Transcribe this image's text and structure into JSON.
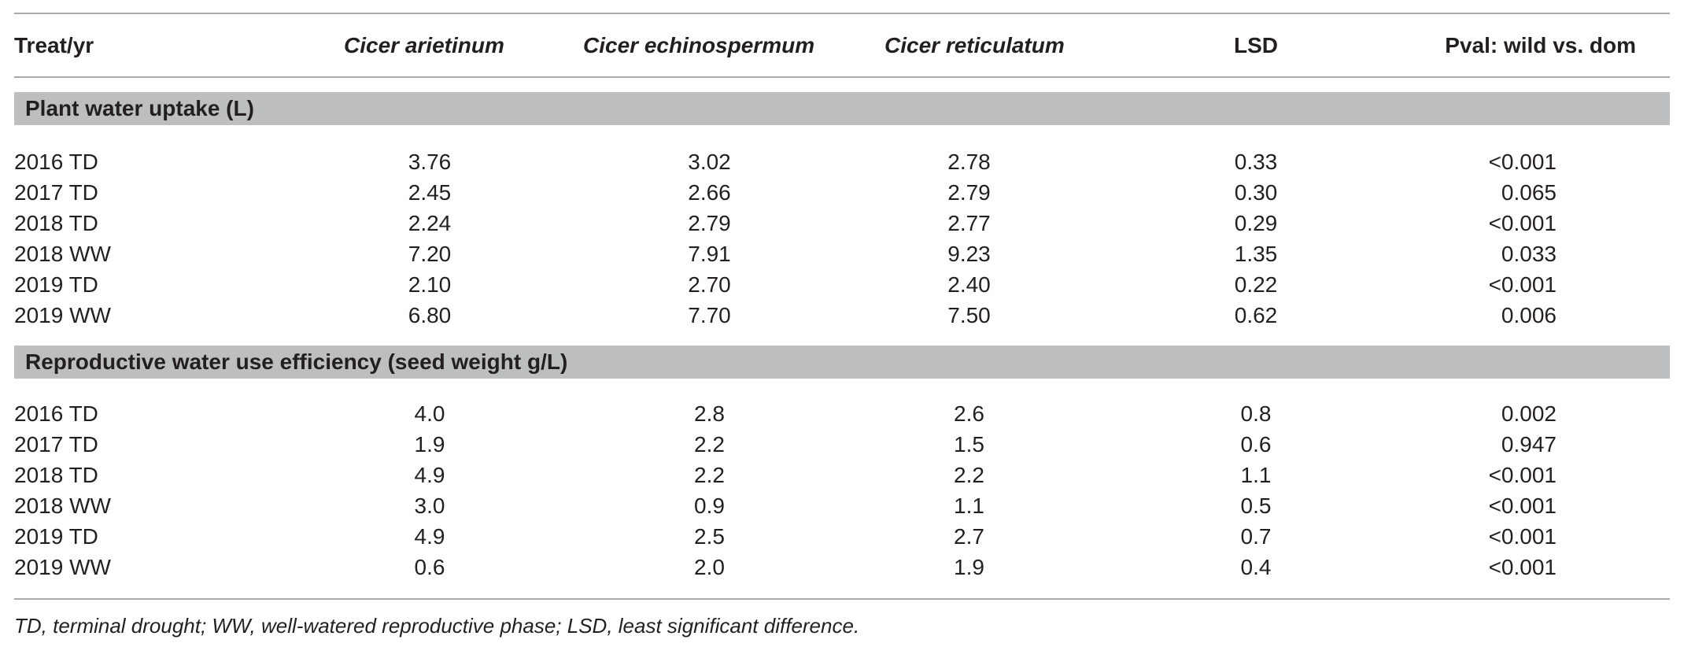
{
  "table": {
    "columns": [
      "Treat/yr",
      "Cicer arietinum",
      "Cicer echinospermum",
      "Cicer reticulatum",
      "LSD",
      "Pval: wild vs. dom"
    ],
    "sections": [
      {
        "title": "Plant water uptake (L)",
        "rows": [
          [
            "2016 TD",
            "3.76",
            "3.02",
            "2.78",
            "0.33",
            "<0.001"
          ],
          [
            "2017 TD",
            "2.45",
            "2.66",
            "2.79",
            "0.30",
            "0.065"
          ],
          [
            "2018 TD",
            "2.24",
            "2.79",
            "2.77",
            "0.29",
            "<0.001"
          ],
          [
            "2018 WW",
            "7.20",
            "7.91",
            "9.23",
            "1.35",
            "0.033"
          ],
          [
            "2019 TD",
            "2.10",
            "2.70",
            "2.40",
            "0.22",
            "<0.001"
          ],
          [
            "2019 WW",
            "6.80",
            "7.70",
            "7.50",
            "0.62",
            "0.006"
          ]
        ]
      },
      {
        "title": "Reproductive water use efficiency (seed weight g/L)",
        "rows": [
          [
            "2016 TD",
            "4.0",
            "2.8",
            "2.6",
            "0.8",
            "0.002"
          ],
          [
            "2017 TD",
            "1.9",
            "2.2",
            "1.5",
            "0.6",
            "0.947"
          ],
          [
            "2018 TD",
            "4.9",
            "2.2",
            "2.2",
            "1.1",
            "<0.001"
          ],
          [
            "2018 WW",
            "3.0",
            "0.9",
            "1.1",
            "0.5",
            "<0.001"
          ],
          [
            "2019 TD",
            "4.9",
            "2.5",
            "2.7",
            "0.7",
            "<0.001"
          ],
          [
            "2019 WW",
            "0.6",
            "2.0",
            "1.9",
            "0.4",
            "<0.001"
          ]
        ]
      }
    ],
    "footnote": "TD, terminal drought; WW, well-watered reproductive phase; LSD, least significant difference."
  }
}
